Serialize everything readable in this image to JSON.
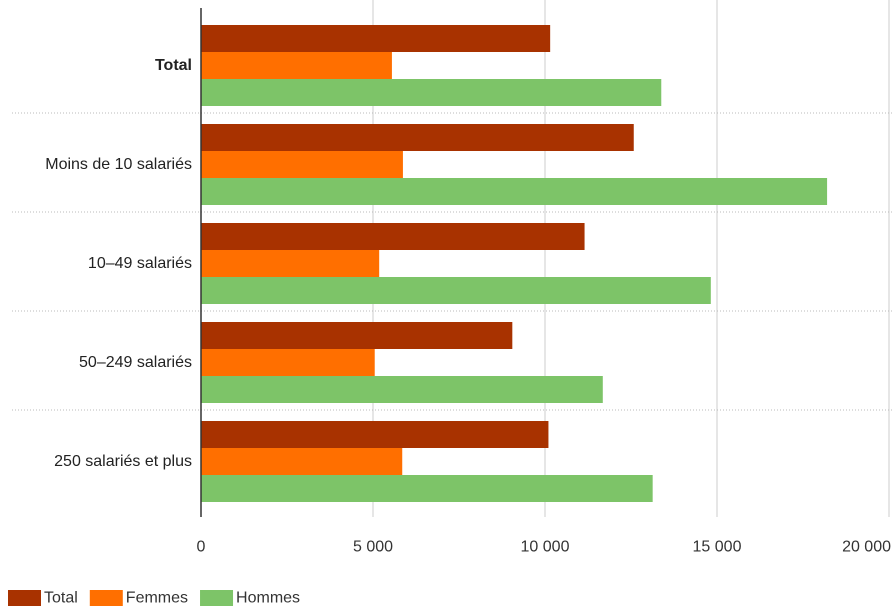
{
  "chart_data": {
    "type": "bar",
    "orientation": "horizontal",
    "title": "",
    "xlabel": "",
    "ylabel": "",
    "categories": [
      "Total",
      "Moins de 10 salariés",
      "10–49 salariés",
      "50–249 salariés",
      "250 salariés et plus"
    ],
    "highlighted_category": "Total",
    "series": [
      {
        "name": "Total",
        "color": "#a83200",
        "values": [
          10150,
          12580,
          11150,
          9050,
          10100
        ]
      },
      {
        "name": "Femmes",
        "color": "#ff6f00",
        "values": [
          5550,
          5870,
          5180,
          5050,
          5850
        ]
      },
      {
        "name": "Hommes",
        "color": "#7dc468",
        "values": [
          13380,
          18200,
          14820,
          11680,
          13130
        ]
      }
    ],
    "xlim": [
      0,
      20000
    ],
    "xticks": [
      0,
      5000,
      10000,
      15000,
      20000
    ],
    "xtick_labels": [
      "0",
      "5 000",
      "10 000",
      "15 000",
      "20 000"
    ],
    "grid": "vertical",
    "legend_position": "bottom-left"
  }
}
